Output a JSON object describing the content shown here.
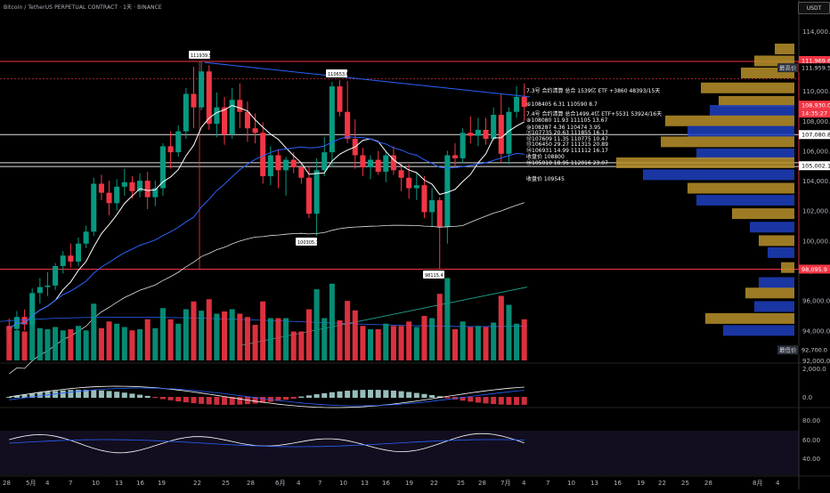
{
  "header": {
    "title": "Bitcoin / TetherUS PERPETUAL CONTRACT · 1天 · BINANCE"
  },
  "currency_button": "USDT",
  "price_axis": {
    "ticks": [
      "114,000.0",
      "110,000.0",
      "108,000.0",
      "106,000.0",
      "104,000.0",
      "102,000.0",
      "100,000.0",
      "98,000.0",
      "96,000.0",
      "94,000.0",
      "92,000.0"
    ],
    "vol_ticks": [
      "2,000.0",
      "0.0"
    ],
    "rsi_ticks": [
      "80.00",
      "60.00",
      "40.00"
    ]
  },
  "price_tags": [
    {
      "text": "111,969.6",
      "bg": "#f23645",
      "fg": "#ffffff"
    },
    {
      "text": "111,959.5",
      "bg": "#000000",
      "fg": "#d1d4dc",
      "label": "最高价"
    },
    {
      "text": "108,930.0",
      "bg": "#f23645",
      "fg": "#ffffff"
    },
    {
      "text": "14:35:27",
      "bg": "#f23645",
      "fg": "#ffffff"
    },
    {
      "text": "107,080.8",
      "bg": "#ffffff",
      "fg": "#000000"
    },
    {
      "text": "105,002.1",
      "bg": "#ffffff",
      "fg": "#000000"
    },
    {
      "text": "98,095.9",
      "bg": "#f23645",
      "fg": "#ffffff"
    },
    {
      "text": "92,700.0",
      "bg": "#000000",
      "fg": "#d1d4dc",
      "label": "最低价"
    }
  ],
  "x_axis": [
    "28",
    "5月",
    "4",
    "7",
    "10",
    "13",
    "16",
    "19",
    "22",
    "25",
    "28",
    "6月",
    "4",
    "7",
    "10",
    "13",
    "16",
    "19",
    "22",
    "25",
    "28",
    "7月",
    "4",
    "7",
    "10",
    "13",
    "16",
    "19",
    "22",
    "25",
    "28",
    "8月",
    "4"
  ],
  "price_callouts": [
    "111939.5",
    "110653.6",
    "100305.1",
    "98115.4"
  ],
  "annotations": [
    "7.3号  合约清算  总合 1539亿  ETF +3860   48393/15天",
    "⑥108405    6.31     110590     8.7",
    "7.4号  合约清算  总合1499.4亿  ETF+5531  53924/16天",
    "⑧108080    11.93    111105    13.67",
    "⑩108287    4.36     110474    3.95",
    "⑪107735    20.63    111855    16.17",
    "⑫107609    11.35    110775    10.47",
    "⑬106450    29.27    111315    20.89",
    "⑭106931    14.99    111112    16.17",
    "收盘价 108800",
    "⑮105010    18.95    112016    23.07",
    "收盘价 109545"
  ],
  "chart_data": {
    "type": "candlestick",
    "title": "Bitcoin / TetherUS PERPETUAL CONTRACT · 1天 · BINANCE",
    "ylim": [
      92000,
      115000
    ],
    "candles": [
      [
        94300,
        94800,
        93100,
        94100
      ],
      [
        94100,
        95300,
        93800,
        94900
      ],
      [
        94900,
        95400,
        94000,
        94400
      ],
      [
        94400,
        96800,
        94200,
        96500
      ],
      [
        96500,
        97500,
        95800,
        96900
      ],
      [
        96900,
        97900,
        96300,
        97000
      ],
      [
        97000,
        98500,
        96700,
        98300
      ],
      [
        98300,
        99300,
        97800,
        99000
      ],
      [
        99000,
        99800,
        98200,
        98600
      ],
      [
        98600,
        100200,
        98300,
        99800
      ],
      [
        99800,
        101000,
        99500,
        100600
      ],
      [
        100600,
        104200,
        100300,
        103800
      ],
      [
        103800,
        104400,
        102700,
        103200
      ],
      [
        103200,
        104000,
        101700,
        102500
      ],
      [
        102500,
        104100,
        102000,
        103600
      ],
      [
        103600,
        104800,
        103000,
        103900
      ],
      [
        103900,
        104300,
        102800,
        103300
      ],
      [
        103300,
        104500,
        102900,
        104000
      ],
      [
        104000,
        104600,
        102100,
        102900
      ],
      [
        102900,
        104000,
        102300,
        103500
      ],
      [
        103500,
        106500,
        103000,
        106300
      ],
      [
        106300,
        107300,
        104800,
        105900
      ],
      [
        105900,
        107700,
        105600,
        107300
      ],
      [
        107300,
        110200,
        106800,
        109800
      ],
      [
        109800,
        111600,
        107500,
        108900
      ],
      [
        108900,
        111970,
        108700,
        111300
      ],
      [
        111300,
        111700,
        107400,
        107800
      ],
      [
        107800,
        109900,
        106900,
        108900
      ],
      [
        108900,
        109600,
        106400,
        107100
      ],
      [
        107100,
        110200,
        106800,
        109400
      ],
      [
        109400,
        110500,
        107500,
        108600
      ],
      [
        108600,
        109300,
        106600,
        107500
      ],
      [
        107500,
        108500,
        106500,
        107200
      ],
      [
        107200,
        107900,
        103800,
        104300
      ],
      [
        104300,
        106300,
        103700,
        105700
      ],
      [
        105700,
        106100,
        103500,
        104700
      ],
      [
        104700,
        105600,
        103000,
        105400
      ],
      [
        105400,
        105900,
        104500,
        104900
      ],
      [
        104900,
        105200,
        103800,
        104200
      ],
      [
        104200,
        104900,
        101500,
        101800
      ],
      [
        101800,
        105500,
        100305,
        104700
      ],
      [
        104700,
        106900,
        104300,
        105900
      ],
      [
        105900,
        110600,
        104900,
        110300
      ],
      [
        110300,
        110700,
        108300,
        108600
      ],
      [
        108600,
        110653,
        106500,
        106800
      ],
      [
        106800,
        108100,
        104800,
        105700
      ],
      [
        105700,
        106200,
        104300,
        104900
      ],
      [
        104900,
        105700,
        104100,
        105400
      ],
      [
        105400,
        106000,
        104400,
        104600
      ],
      [
        104600,
        106000,
        103900,
        105700
      ],
      [
        105700,
        106300,
        104400,
        104700
      ],
      [
        104700,
        105200,
        103300,
        104200
      ],
      [
        104200,
        105100,
        102800,
        103500
      ],
      [
        103500,
        104500,
        102700,
        103700
      ],
      [
        103700,
        104300,
        101500,
        101900
      ],
      [
        101900,
        103500,
        100900,
        102700
      ],
      [
        102700,
        102900,
        98115,
        100900
      ],
      [
        100900,
        106000,
        99800,
        105700
      ],
      [
        105700,
        106500,
        104900,
        105500
      ],
      [
        105500,
        107500,
        105200,
        107200
      ],
      [
        107200,
        108300,
        106500,
        107000
      ],
      [
        107000,
        108200,
        106300,
        107400
      ],
      [
        107400,
        108200,
        106400,
        106800
      ],
      [
        106800,
        108900,
        106700,
        108400
      ],
      [
        108400,
        109800,
        105200,
        105800
      ],
      [
        105800,
        108900,
        105100,
        108600
      ],
      [
        108600,
        110300,
        108200,
        109600
      ],
      [
        109600,
        110500,
        108000,
        108930
      ]
    ],
    "ma_white_fast_note": "short MA",
    "volume_note": "volume bars colored by candle direction",
    "volume_profile_note": "visible range volume profile on right",
    "series": [
      {
        "name": "RSI",
        "panel": "rsi"
      },
      {
        "name": "MACD",
        "panel": "macd"
      }
    ]
  }
}
